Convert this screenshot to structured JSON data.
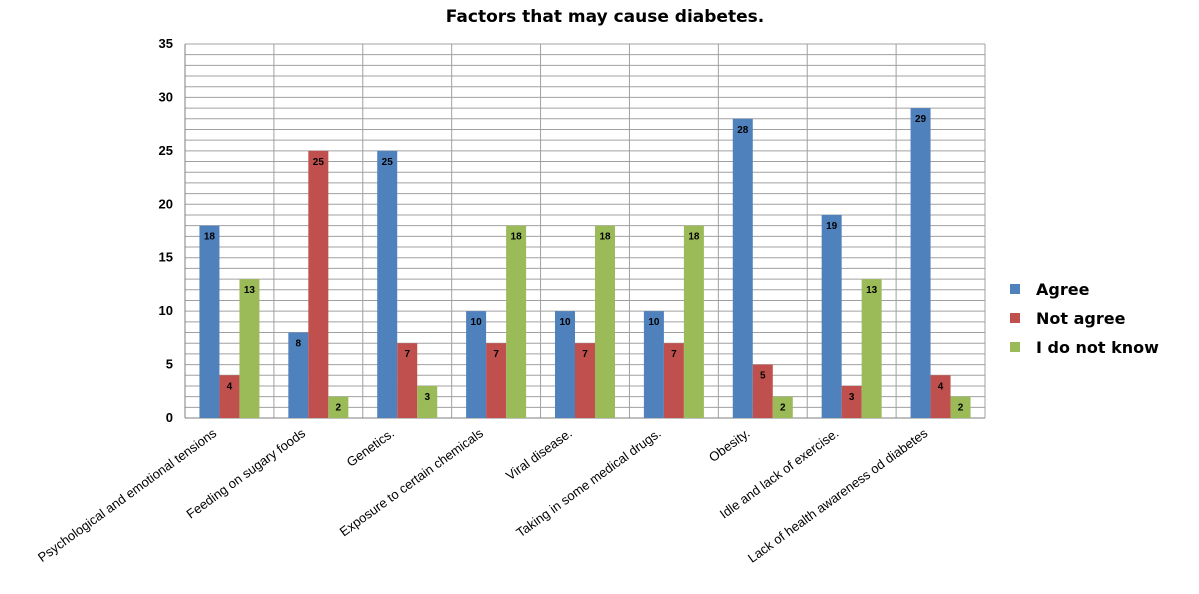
{
  "chart_data": {
    "type": "bar",
    "title": "Factors that may cause diabetes.",
    "xlabel": "",
    "ylabel": "",
    "ylim": [
      0,
      35
    ],
    "yticks": [
      0,
      5,
      10,
      15,
      20,
      25,
      30,
      35
    ],
    "minor_grid_step": 1,
    "grid": true,
    "legend_position": "right",
    "categories": [
      "Psychological and emotional tensions",
      "Feeding on sugary foods",
      "Genetics.",
      "Exposure to certain chemicals",
      "Viral disease.",
      "Taking in some medical drugs.",
      "Obesity.",
      "Idle and lack of exercise.",
      "Lack of health awareness od diabetes"
    ],
    "series": [
      {
        "name": "Agree",
        "color": "#4f81bd",
        "values": [
          18,
          8,
          25,
          10,
          10,
          10,
          28,
          19,
          29
        ]
      },
      {
        "name": "Not agree",
        "color": "#c0504d",
        "values": [
          4,
          25,
          7,
          7,
          7,
          7,
          5,
          3,
          4
        ]
      },
      {
        "name": "I do not know",
        "color": "#9bbb59",
        "values": [
          13,
          2,
          3,
          18,
          18,
          18,
          2,
          13,
          2
        ]
      }
    ]
  }
}
